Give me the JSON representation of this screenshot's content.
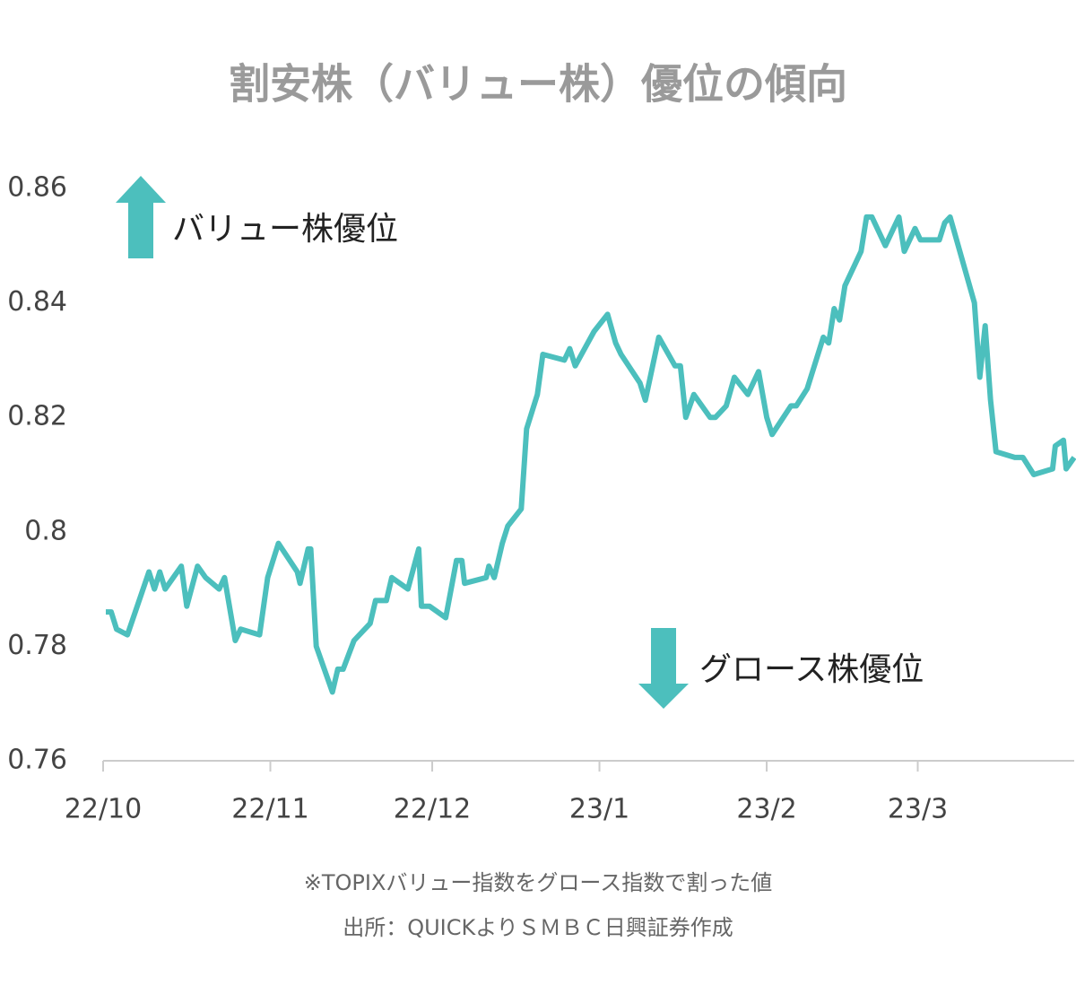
{
  "chart_data": {
    "type": "line",
    "title": "割安株（バリュー株）優位の傾向",
    "annotations": [
      "バリュー株優位",
      "グロース株優位"
    ],
    "notes": [
      "※TOPIXバリュー指数をグロース指数で割った値",
      "出所：QUICKよりＳＭＢＣ日興証券作成"
    ],
    "color": "#4cbfbd",
    "x": [
      0.5,
      1.5,
      2.5,
      4.5,
      8.5,
      9.5,
      10.5,
      11.5,
      14.5,
      15.5,
      17.5,
      19,
      21.5,
      22.5,
      24.5,
      25.5,
      29,
      30.5,
      32.5,
      36,
      36.5,
      38,
      38.5,
      39.5,
      42.5,
      43.5,
      44.5,
      46.5,
      49.5,
      50.5,
      52.5,
      53.5,
      56.5,
      58.5,
      59,
      60.5,
      63.5,
      65.5,
      66.5,
      67,
      71,
      71.5,
      72.5,
      74,
      75,
      77.5,
      78.5,
      80.5,
      81.5,
      85.5,
      86.5,
      87.5,
      91,
      93.5,
      95,
      96,
      99.5,
      100.5,
      103,
      106,
      107,
      108,
      109.5,
      112.5,
      113.5,
      115.5,
      117,
      119.5,
      121.5,
      123,
      124,
      127.5,
      128.5,
      130.5,
      133.5,
      134.5,
      135.5,
      136.5,
      137.5,
      140.5,
      141.5,
      142.5,
      145,
      147.5,
      148.5,
      150.5,
      151.5,
      155,
      156,
      157,
      161.5,
      162.5,
      163.5,
      164.5,
      165.5,
      169,
      170.5,
      172.5,
      176,
      176.5,
      178,
      178.5,
      180
    ],
    "values": [
      0.786,
      0.786,
      0.783,
      0.782,
      0.793,
      0.79,
      0.793,
      0.79,
      0.794,
      0.787,
      0.794,
      0.792,
      0.79,
      0.792,
      0.781,
      0.783,
      0.782,
      0.792,
      0.798,
      0.793,
      0.791,
      0.797,
      0.797,
      0.78,
      0.772,
      0.776,
      0.776,
      0.781,
      0.784,
      0.788,
      0.788,
      0.792,
      0.79,
      0.797,
      0.787,
      0.787,
      0.785,
      0.795,
      0.795,
      0.791,
      0.792,
      0.794,
      0.792,
      0.798,
      0.801,
      0.804,
      0.818,
      0.824,
      0.831,
      0.83,
      0.832,
      0.829,
      0.835,
      0.838,
      0.833,
      0.831,
      0.826,
      0.823,
      0.834,
      0.829,
      0.829,
      0.82,
      0.824,
      0.82,
      0.82,
      0.822,
      0.827,
      0.824,
      0.828,
      0.82,
      0.817,
      0.822,
      0.822,
      0.825,
      0.834,
      0.833,
      0.839,
      0.837,
      0.843,
      0.849,
      0.855,
      0.855,
      0.85,
      0.855,
      0.849,
      0.853,
      0.851,
      0.851,
      0.854,
      0.855,
      0.84,
      0.827,
      0.836,
      0.823,
      0.814,
      0.813,
      0.813,
      0.81,
      0.811,
      0.815,
      0.816,
      0.811,
      0.813
    ],
    "xlim": [
      0,
      180
    ],
    "xticks": [
      {
        "value": 0,
        "label": "22/10"
      },
      {
        "value": 31,
        "label": "22/11"
      },
      {
        "value": 61,
        "label": "22/12"
      },
      {
        "value": 92,
        "label": "23/1"
      },
      {
        "value": 123,
        "label": "23/2"
      },
      {
        "value": 151,
        "label": "23/3"
      }
    ],
    "ylim": [
      0.76,
      0.86
    ],
    "yticks": [
      0.76,
      0.78,
      0.8,
      0.82,
      0.84,
      0.86
    ]
  }
}
